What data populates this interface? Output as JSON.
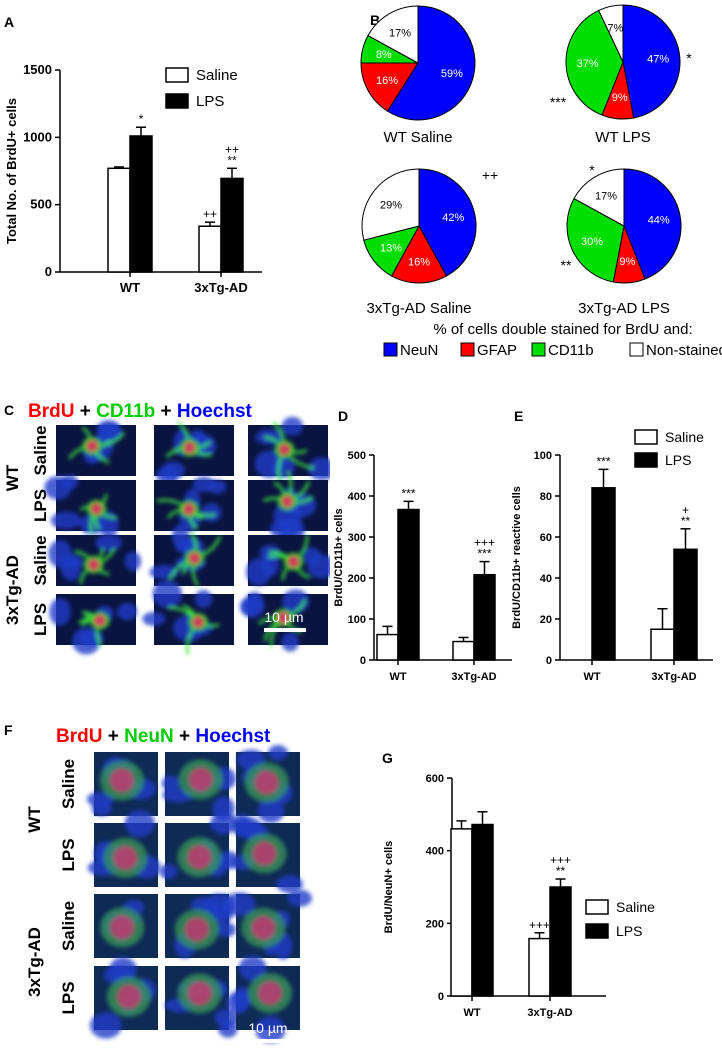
{
  "panel_labels": [
    "A",
    "B",
    "C",
    "D",
    "E",
    "F",
    "G"
  ],
  "colors": {
    "neun": "#0000ff",
    "gfap": "#ff0000",
    "cd11b": "#00dd00",
    "non": "#ffffff",
    "lps": "#000000",
    "saline": "#ffffff",
    "brdu_text": "#ff0000",
    "marker_text": "#00cc00",
    "hoechst_text": "#0000ff"
  },
  "chart_data": [
    {
      "id": "A",
      "type": "bar",
      "ylabel": "Total No. of BrdU+ cells",
      "ylim": [
        0,
        1500
      ],
      "yticks": [
        "0",
        "500",
        "1000",
        "1500"
      ],
      "ytick_values": [
        0,
        500,
        1000,
        1500
      ],
      "categories": [
        "WT",
        "3xTg-AD"
      ],
      "series": [
        {
          "name": "Saline",
          "values": [
            770,
            340
          ],
          "errors": [
            10,
            30
          ],
          "annotations": [
            "",
            "++"
          ]
        },
        {
          "name": "LPS",
          "values": [
            1010,
            695
          ],
          "errors": [
            65,
            75
          ],
          "annotations": [
            "*",
            "++\n**"
          ]
        }
      ],
      "legend": "top-right"
    },
    {
      "id": "B",
      "type": "pie",
      "legend_title": "% of cells double stained for BrdU and:",
      "legend_items": [
        "NeuN",
        "GFAP",
        "CD11b",
        "Non-stained"
      ],
      "pies": [
        {
          "title": "WT Saline",
          "slices": [
            59,
            16,
            8,
            17
          ],
          "labels": [
            "59%",
            "16%",
            "8%",
            "17%"
          ],
          "marks": []
        },
        {
          "title": "WT LPS",
          "slices": [
            47,
            9,
            37,
            7
          ],
          "labels": [
            "47%",
            "9%",
            "37%",
            "7%"
          ],
          "marks": [
            "*",
            "***"
          ]
        },
        {
          "title": "3xTg-AD Saline",
          "slices": [
            42,
            16,
            13,
            29
          ],
          "labels": [
            "42%",
            "16%",
            "13%",
            "29%"
          ],
          "marks": [
            "++"
          ]
        },
        {
          "title": "3xTg-AD LPS",
          "slices": [
            44,
            9,
            30,
            17
          ],
          "labels": [
            "44%",
            "9%",
            "30%",
            "17%"
          ],
          "marks": [
            "*",
            "**"
          ]
        }
      ]
    },
    {
      "id": "D",
      "type": "bar",
      "ylabel": "BrdU/CD11b+ cells",
      "ylim": [
        0,
        500
      ],
      "yticks": [
        "0",
        "100",
        "200",
        "300",
        "400",
        "500"
      ],
      "ytick_values": [
        0,
        100,
        200,
        300,
        400,
        500
      ],
      "categories": [
        "WT",
        "3xTg-AD"
      ],
      "series": [
        {
          "name": "Saline",
          "values": [
            62,
            45
          ],
          "errors": [
            20,
            10
          ],
          "annotations": [
            "",
            ""
          ]
        },
        {
          "name": "LPS",
          "values": [
            367,
            208
          ],
          "errors": [
            20,
            32
          ],
          "annotations": [
            "***",
            "+++\n***"
          ]
        }
      ]
    },
    {
      "id": "E",
      "type": "bar",
      "ylabel": "BrdU/CD11b+ reactive cells",
      "ylim": [
        0,
        100
      ],
      "yticks": [
        "0",
        "20",
        "40",
        "60",
        "80",
        "100"
      ],
      "ytick_values": [
        0,
        20,
        40,
        60,
        80,
        100
      ],
      "categories": [
        "WT",
        "3xTg-AD"
      ],
      "series": [
        {
          "name": "Saline",
          "values": [
            0,
            15
          ],
          "errors": [
            0,
            10
          ],
          "annotations": [
            "",
            ""
          ]
        },
        {
          "name": "LPS",
          "values": [
            84,
            54
          ],
          "errors": [
            9,
            10
          ],
          "annotations": [
            "***",
            "+\n**"
          ]
        }
      ],
      "legend": "top-right"
    },
    {
      "id": "G",
      "type": "bar",
      "ylabel": "BrdU/NeuN+ cells",
      "ylim": [
        0,
        600
      ],
      "yticks": [
        "0",
        "200",
        "400",
        "600"
      ],
      "ytick_values": [
        0,
        200,
        400,
        600
      ],
      "categories": [
        "WT",
        "3xTg-AD"
      ],
      "series": [
        {
          "name": "Saline",
          "values": [
            460,
            158
          ],
          "errors": [
            22,
            16
          ],
          "annotations": [
            "",
            "+++"
          ]
        },
        {
          "name": "LPS",
          "values": [
            472,
            300
          ],
          "errors": [
            35,
            22
          ],
          "annotations": [
            "",
            "+++\n**"
          ]
        }
      ],
      "legend": "bottom-right"
    }
  ],
  "micrographs": {
    "C": {
      "title": {
        "brdu": "BrdU",
        "plus1": " + ",
        "marker": "CD11b",
        "plus2": " + ",
        "hoechst": "Hoechst"
      },
      "group_labels": [
        "WT",
        "3xTg-AD"
      ],
      "row_labels": [
        "Saline",
        "LPS",
        "Saline",
        "LPS"
      ],
      "scale_bar": "10 µm"
    },
    "F": {
      "title": {
        "brdu": "BrdU",
        "plus1": " + ",
        "marker": "NeuN",
        "plus2": " + ",
        "hoechst": "Hoechst"
      },
      "group_labels": [
        "WT",
        "3xTg-AD"
      ],
      "row_labels": [
        "Saline",
        "LPS",
        "Saline",
        "LPS"
      ],
      "scale_bar": "10 µm"
    }
  }
}
